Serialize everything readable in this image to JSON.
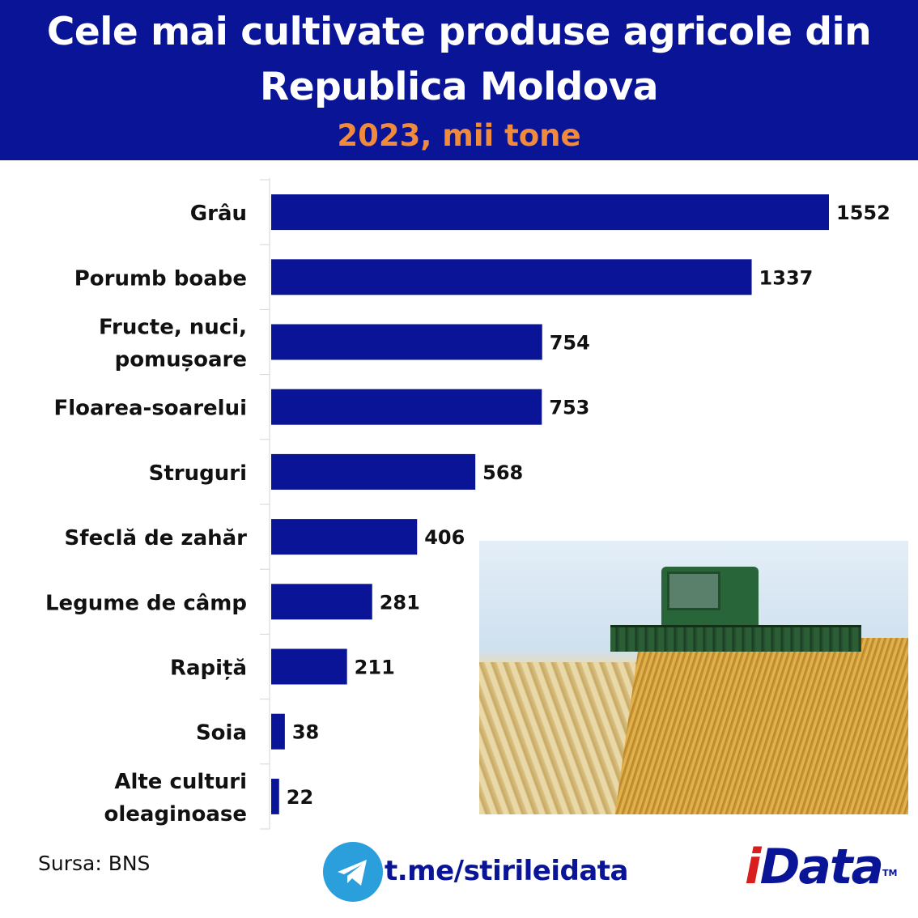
{
  "header": {
    "title_line_1": "Cele mai cultivate produse agricole din",
    "title_line_2": "Republica Moldova",
    "subtitle": "2023, mii tone"
  },
  "chart_data": {
    "type": "bar",
    "orientation": "horizontal",
    "title": "Cele mai cultivate produse agricole din Republica Moldova",
    "subtitle": "2023, mii tone",
    "categories": [
      [
        "Grâu"
      ],
      [
        "Porumb boabe"
      ],
      [
        "Fructe, nuci,",
        "pomușoare"
      ],
      [
        "Floarea-soarelui"
      ],
      [
        "Struguri"
      ],
      [
        "Sfeclă de zahăr"
      ],
      [
        "Legume de câmp"
      ],
      [
        "Rapiță"
      ],
      [
        "Soia"
      ],
      [
        "Alte culturi",
        "oleaginoase"
      ]
    ],
    "values": [
      1552,
      1337,
      754,
      753,
      568,
      406,
      281,
      211,
      38,
      22
    ],
    "xlim": [
      0,
      1552
    ],
    "grid": false,
    "legend": "none",
    "bar_color": "#0a1496"
  },
  "photo": {
    "subject": "combine harvester in wheat field"
  },
  "footer": {
    "source": "Sursa: BNS",
    "telegram_link": "t.me/stirileidata",
    "brand_first": "i",
    "brand_rest": "Data",
    "brand_tm": "TM"
  },
  "colors": {
    "header_bg": "#0a1496",
    "subtitle": "#f08a3c",
    "brand_accent": "#d81e1e",
    "telegram": "#2b9fdc"
  },
  "icons": {
    "telegram": "telegram-icon"
  }
}
